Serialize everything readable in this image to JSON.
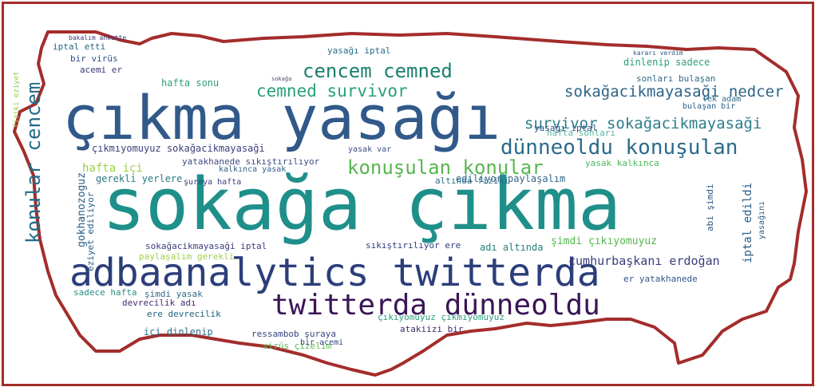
{
  "colors": {
    "border": "#a32d2b",
    "background": "#ffffff"
  },
  "shape": "turkey-map-outline",
  "words": [
    "sokağa çıkma",
    "çıkma yasağı",
    "adbaanalytics twitterda",
    "twitterda dünneoldu",
    "dünneoldu konuşulan",
    "konuşulan konular",
    "cencem cemned",
    "cemned survivor",
    "survivor sokağacikmayasaği",
    "sokağacikmayasaği nedcer",
    "konular cencem",
    "cumhurbaşkanı erdoğan",
    "hafta sonu",
    "yasağı iptal",
    "ediliyor paylaşalım",
    "iptal edildi",
    "gokhanozoguz",
    "şimdi çıkıyomuyuz",
    "çıkmıyomuyuz sokağacikmayasaği",
    "gerekli yerlere",
    "hafta içi",
    "yatakhanede sıkıştırılıyor",
    "sıkıştırılıyor ere",
    "ere devrecilik",
    "devrecilik adı",
    "adı altında",
    "altında fiziki",
    "içi dinlenip",
    "dinlenip sadece",
    "sadece hafta",
    "şimdi yasak",
    "ressambob şuraya",
    "virüs çizelim",
    "atakiizi bir",
    "sokağacikmayasaği iptal",
    "paylaşalım gerekli",
    "yasak kalkınca",
    "kalkınca yasak",
    "çıkıyomuyuz çıkmıyomuyuz",
    "abi şimdi",
    "eziyet ediliyor",
    "hafta sonları",
    "sonları bulaşan",
    "bulaşan bir",
    "yasağı iptal",
    "iptal etti",
    "bir virüs",
    "acemi er",
    "er yatakhanede",
    "bakalım ankette",
    "fiziki eziyet",
    "yasak var",
    "tek adam",
    "kararı verdim",
    "şuraya hafta",
    "cezalı",
    "sokağa",
    "bir acemi",
    "yasağını"
  ]
}
